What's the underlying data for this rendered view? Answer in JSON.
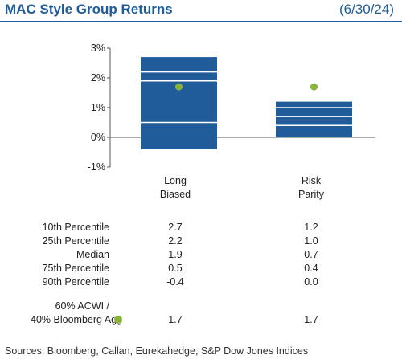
{
  "header": {
    "title": "MAC Style Group Returns",
    "date": "(6/30/24)"
  },
  "chart_data": {
    "type": "floating-bar",
    "ylim": [
      -1,
      3
    ],
    "yticks": [
      "3%",
      "2%",
      "1%",
      "0%",
      "-1%"
    ],
    "ytick_values": [
      3,
      2,
      1,
      0,
      -1
    ],
    "categories": [
      "Long\nBiased",
      "Risk\nParity"
    ],
    "category_lines": [
      [
        "Long",
        "Biased"
      ],
      [
        "Risk",
        "Parity"
      ]
    ],
    "series": [
      {
        "name": "10th Percentile",
        "values": [
          2.7,
          1.2
        ]
      },
      {
        "name": "25th Percentile",
        "values": [
          2.2,
          1.0
        ]
      },
      {
        "name": "Median",
        "values": [
          1.9,
          0.7
        ]
      },
      {
        "name": "75th Percentile",
        "values": [
          0.5,
          0.4
        ]
      },
      {
        "name": "90th Percentile",
        "values": [
          -0.4,
          0.0
        ]
      }
    ],
    "benchmark": {
      "name": "60% ACWI / 40% Bloomberg Agg",
      "values": [
        1.7,
        1.7
      ]
    }
  },
  "table": {
    "rows": [
      {
        "label": "10th Percentile",
        "values": [
          "2.7",
          "1.2"
        ]
      },
      {
        "label": "25th Percentile",
        "values": [
          "2.2",
          "1.0"
        ]
      },
      {
        "label": "Median",
        "values": [
          "1.9",
          "0.7"
        ]
      },
      {
        "label": "75th Percentile",
        "values": [
          "0.5",
          "0.4"
        ]
      },
      {
        "label": "90th Percentile",
        "values": [
          "-0.4",
          "0.0"
        ]
      }
    ],
    "benchmark": {
      "line1": "60% ACWI /",
      "line2": "40% Bloomberg Agg",
      "values": [
        "1.7",
        "1.7"
      ]
    }
  },
  "sources": "Sources: Bloomberg, Callan, Eurekahedge, S&P Dow Jones Indices",
  "colors": {
    "title": "#1f5c99",
    "bar": "#1f5c99",
    "dot": "#8ab439",
    "axis": "#555555"
  }
}
